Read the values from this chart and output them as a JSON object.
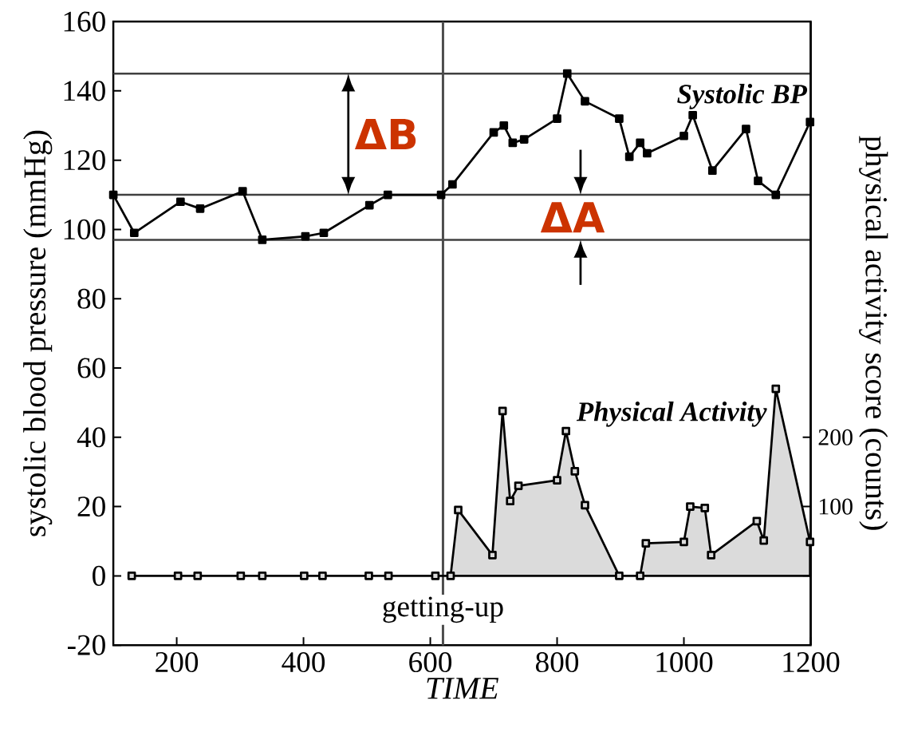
{
  "chart_data": {
    "type": "line",
    "xlabel": "TIME",
    "ylabel": "systolic blood pressure (mmHg)",
    "y2label": "physical activity score (counts)",
    "xlim": [
      100,
      1200
    ],
    "xticks": [
      200,
      400,
      600,
      800,
      1000,
      1200
    ],
    "ylim": [
      -20,
      160
    ],
    "yticks": [
      -20,
      0,
      20,
      40,
      60,
      80,
      100,
      120,
      140,
      160
    ],
    "y2lim": [
      -100,
      800
    ],
    "y2ticks": [
      {
        "value": 0,
        "label": null
      },
      100,
      200
    ],
    "marker": "square",
    "grid": false,
    "series": [
      {
        "name": "Systolic BP",
        "color": "#000000",
        "x": [
          100,
          133,
          206,
          237,
          304,
          335,
          403,
          432,
          504,
          533,
          617,
          635,
          700,
          716,
          730,
          748,
          800,
          816,
          844,
          898,
          914,
          931,
          942,
          1000,
          1014,
          1045,
          1098,
          1117,
          1145,
          1199
        ],
        "values": [
          110,
          99,
          108,
          106,
          111,
          97,
          98,
          99,
          107,
          110,
          110,
          113,
          128,
          130,
          125,
          126,
          132,
          145,
          137,
          132,
          121,
          125,
          122,
          127,
          133,
          117,
          129,
          114,
          110,
          131
        ]
      },
      {
        "name": "Physical Activity",
        "type": "area",
        "axis": "y2",
        "color": "#000000",
        "x": [
          129,
          202,
          233,
          301,
          335,
          401,
          430,
          503,
          534,
          608,
          632,
          644,
          698,
          714,
          726,
          739,
          800,
          814,
          828,
          844,
          898,
          931,
          940,
          1000,
          1010,
          1033,
          1043,
          1115,
          1126,
          1145,
          1199
        ],
        "values": [
          0,
          0,
          0,
          0,
          0,
          0,
          0,
          0,
          0,
          0,
          0,
          95,
          30,
          238,
          108,
          130,
          138,
          209,
          151,
          102,
          0,
          0,
          47,
          49,
          100,
          98,
          30,
          79,
          51,
          270,
          49
        ]
      }
    ],
    "ref_lines": [
      {
        "axis": "y",
        "value": 145
      },
      {
        "axis": "y",
        "value": 110
      },
      {
        "axis": "y",
        "value": 97
      },
      {
        "axis": "x",
        "value": 620,
        "label": "getting-up"
      }
    ],
    "annotations": [
      "ΔB",
      "ΔA"
    ]
  }
}
